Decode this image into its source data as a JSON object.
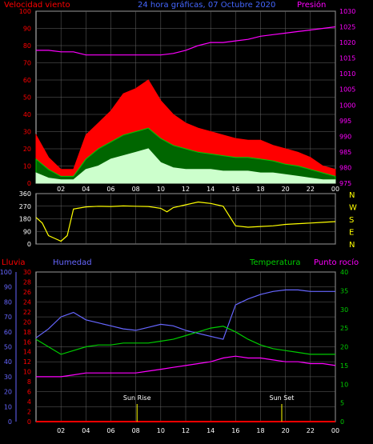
{
  "header": {
    "title": "24 hora gráficas, 07 Octubre 2020",
    "wind_label": "Velocidad viento",
    "pressure_label": "Presión"
  },
  "colors": {
    "wind_gust": "#ff0000",
    "wind_avg": "#00cc00",
    "wind_speed": "#ccffcc",
    "pressure": "#ff00ff",
    "direction": "#ffff00",
    "rain": "#ff0000",
    "humidity": "#6666ff",
    "temperature": "#00cc00",
    "dewpoint": "#ff00ff",
    "grid": "#666666",
    "sun_marker": "#ffff00"
  },
  "hour_ticks": [
    "02",
    "04",
    "06",
    "08",
    "10",
    "12",
    "14",
    "16",
    "18",
    "20",
    "22",
    "00"
  ],
  "chart_data": [
    {
      "type": "area",
      "title": "24 hora gráficas, 07 Octubre 2020",
      "ylabel": "Velocidad viento",
      "y2label": "Presión",
      "ylim": [
        0,
        100
      ],
      "y2lim": [
        975,
        1030
      ],
      "yticks": [
        0,
        10,
        20,
        30,
        40,
        50,
        60,
        70,
        80,
        90,
        100
      ],
      "y2ticks": [
        975,
        980,
        985,
        990,
        995,
        1000,
        1005,
        1010,
        1015,
        1020,
        1025,
        1030
      ],
      "x": [
        0,
        1,
        2,
        3,
        4,
        5,
        6,
        7,
        8,
        9,
        10,
        11,
        12,
        13,
        14,
        15,
        16,
        17,
        18,
        19,
        20,
        21,
        22,
        23,
        24
      ],
      "series": [
        {
          "key": "gust",
          "values": [
            28,
            15,
            8,
            8,
            28,
            35,
            42,
            52,
            55,
            60,
            48,
            40,
            35,
            32,
            30,
            28,
            26,
            25,
            25,
            22,
            20,
            18,
            15,
            10,
            8
          ]
        },
        {
          "key": "avg",
          "values": [
            14,
            8,
            4,
            4,
            14,
            20,
            24,
            28,
            30,
            32,
            26,
            22,
            20,
            18,
            17,
            16,
            15,
            15,
            14,
            13,
            11,
            10,
            8,
            6,
            4
          ]
        },
        {
          "key": "speed",
          "values": [
            6,
            3,
            2,
            2,
            8,
            10,
            14,
            16,
            18,
            20,
            12,
            9,
            8,
            8,
            8,
            7,
            7,
            7,
            6,
            6,
            5,
            4,
            3,
            2,
            2
          ]
        },
        {
          "key": "pressure",
          "axis": "y2",
          "values": [
            1017.5,
            1017.5,
            1017,
            1017,
            1016,
            1016,
            1016,
            1016,
            1016,
            1016,
            1016,
            1016.5,
            1017.5,
            1019,
            1020,
            1020,
            1020.5,
            1021,
            1022,
            1022.5,
            1023,
            1023.5,
            1024,
            1024.5,
            1025
          ]
        }
      ]
    },
    {
      "type": "line",
      "ylim": [
        0,
        360
      ],
      "yticks": [
        0,
        90,
        180,
        270,
        360
      ],
      "compass": [
        "N",
        "W",
        "S",
        "E",
        "N"
      ],
      "x": [
        0,
        0.5,
        1,
        1.5,
        2,
        2.5,
        3,
        4,
        5,
        6,
        7,
        8,
        9,
        10,
        10.5,
        11,
        12,
        13,
        14,
        15,
        16,
        17,
        18,
        19,
        20,
        21,
        22,
        23,
        24
      ],
      "values": [
        190,
        150,
        60,
        40,
        20,
        60,
        250,
        265,
        270,
        268,
        272,
        270,
        268,
        255,
        230,
        260,
        280,
        300,
        290,
        270,
        130,
        120,
        125,
        130,
        140,
        145,
        150,
        155,
        160
      ]
    },
    {
      "type": "line",
      "ylabel": "Lluvia",
      "ylabel2": "Humedad",
      "y2label": "Temperatura",
      "y3label": "Punto rocío",
      "ylim_humidity": [
        0,
        100
      ],
      "ylim_rain": [
        0,
        30
      ],
      "ylim_temp": [
        0,
        40
      ],
      "humidity_ticks": [
        0,
        10,
        20,
        30,
        40,
        50,
        60,
        70,
        80,
        90,
        100
      ],
      "rain_ticks": [
        0,
        2,
        4,
        6,
        8,
        10,
        12,
        14,
        16,
        18,
        20,
        22,
        24,
        26,
        28,
        30
      ],
      "temp_ticks": [
        0,
        5,
        10,
        15,
        20,
        25,
        30,
        35,
        40
      ],
      "x": [
        0,
        1,
        2,
        3,
        4,
        5,
        6,
        7,
        8,
        9,
        10,
        11,
        12,
        13,
        14,
        15,
        16,
        17,
        18,
        19,
        20,
        21,
        22,
        23,
        24
      ],
      "series": [
        {
          "key": "humidity",
          "values": [
            56,
            62,
            70,
            73,
            68,
            66,
            64,
            62,
            61,
            63,
            65,
            64,
            61,
            59,
            57,
            55,
            78,
            82,
            85,
            87,
            88,
            88,
            87,
            87,
            87
          ]
        },
        {
          "key": "temperature",
          "values": [
            22,
            20,
            18,
            19,
            20,
            20.5,
            20.5,
            21,
            21,
            21,
            21.5,
            22,
            23,
            24,
            25,
            25.5,
            24,
            22,
            20.5,
            19.5,
            19,
            18.5,
            18,
            18,
            18
          ]
        },
        {
          "key": "dewpoint",
          "values": [
            12,
            12,
            12,
            12.5,
            13,
            13,
            13,
            13,
            13,
            13.5,
            14,
            14.5,
            15,
            15.5,
            16,
            17,
            17.5,
            17,
            17,
            16.5,
            16,
            16,
            15.5,
            15.5,
            15
          ]
        },
        {
          "key": "rain",
          "values": [
            0,
            0,
            0,
            0,
            0,
            0,
            0,
            0,
            0,
            0,
            0,
            0,
            0,
            0,
            0,
            0,
            0,
            0,
            0,
            0,
            0,
            0,
            0,
            0,
            0
          ]
        }
      ],
      "annotations": [
        {
          "label": "Sun Rise",
          "x": 8.1
        },
        {
          "label": "Sun Set",
          "x": 19.7
        }
      ]
    }
  ]
}
